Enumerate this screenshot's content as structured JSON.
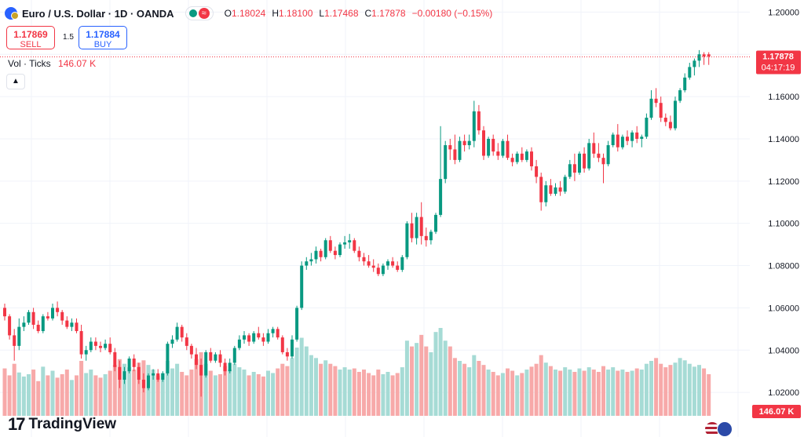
{
  "header": {
    "title": "Euro / U.S. Dollar · 1D · OANDA",
    "ohlc": [
      {
        "k": "O",
        "v": "1.18024"
      },
      {
        "k": "H",
        "v": "1.18100"
      },
      {
        "k": "L",
        "v": "1.17468"
      },
      {
        "k": "C",
        "v": "1.17878"
      }
    ],
    "change": "−0.00180 (−0.15%)",
    "wave_icon": "≈"
  },
  "trade": {
    "sell_price": "1.17869",
    "sell_label": "SELL",
    "buy_price": "1.17884",
    "buy_label": "BUY",
    "spread": "1.5"
  },
  "volume": {
    "label": "Vol · Ticks",
    "value": "146.07 K"
  },
  "collapse_icon": "▲",
  "price_axis": {
    "ticks": [
      "1.20000",
      "1.18000",
      "1.16000",
      "1.14000",
      "1.12000",
      "1.10000",
      "1.08000",
      "1.06000",
      "1.04000",
      "1.02000"
    ],
    "last_price": "1.17878",
    "countdown": "04:17:19",
    "volume_label": "146.07 K"
  },
  "brand": {
    "mark": "17",
    "name": "TradingView"
  },
  "colors": {
    "up": "#089981",
    "down": "#f23645",
    "up_vol": "#a6dbd5",
    "down_vol": "#f7a9a9",
    "grid": "#f0f3fa"
  },
  "chart_data": {
    "type": "candlestick",
    "ylim": [
      1.0167,
      1.202
    ],
    "volume_max": 152,
    "candles": [
      [
        1.06,
        1.062,
        1.054,
        1.056,
        82
      ],
      [
        1.056,
        1.057,
        1.045,
        1.047,
        70
      ],
      [
        1.047,
        1.05,
        1.035,
        1.042,
        90
      ],
      [
        1.042,
        1.055,
        1.04,
        1.051,
        75
      ],
      [
        1.051,
        1.056,
        1.049,
        1.053,
        68
      ],
      [
        1.053,
        1.059,
        1.052,
        1.058,
        72
      ],
      [
        1.058,
        1.06,
        1.05,
        1.052,
        80
      ],
      [
        1.052,
        1.054,
        1.048,
        1.049,
        60
      ],
      [
        1.049,
        1.057,
        1.048,
        1.056,
        85
      ],
      [
        1.056,
        1.058,
        1.054,
        1.055,
        70
      ],
      [
        1.055,
        1.062,
        1.054,
        1.06,
        78
      ],
      [
        1.06,
        1.063,
        1.056,
        1.058,
        66
      ],
      [
        1.058,
        1.059,
        1.052,
        1.054,
        72
      ],
      [
        1.054,
        1.056,
        1.05,
        1.051,
        80
      ],
      [
        1.051,
        1.055,
        1.049,
        1.053,
        62
      ],
      [
        1.053,
        1.055,
        1.048,
        1.049,
        70
      ],
      [
        1.049,
        1.052,
        1.036,
        1.038,
        95
      ],
      [
        1.038,
        1.042,
        1.035,
        1.04,
        74
      ],
      [
        1.04,
        1.046,
        1.039,
        1.044,
        80
      ],
      [
        1.044,
        1.046,
        1.04,
        1.042,
        70
      ],
      [
        1.042,
        1.044,
        1.039,
        1.041,
        66
      ],
      [
        1.041,
        1.045,
        1.04,
        1.043,
        72
      ],
      [
        1.043,
        1.046,
        1.038,
        1.039,
        78
      ],
      [
        1.039,
        1.041,
        1.03,
        1.032,
        88
      ],
      [
        1.032,
        1.035,
        1.022,
        1.026,
        98
      ],
      [
        1.026,
        1.032,
        1.024,
        1.03,
        90
      ],
      [
        1.03,
        1.037,
        1.029,
        1.036,
        84
      ],
      [
        1.036,
        1.038,
        1.03,
        1.032,
        80
      ],
      [
        1.032,
        1.034,
        1.024,
        1.026,
        92
      ],
      [
        1.026,
        1.029,
        1.02,
        1.022,
        96
      ],
      [
        1.022,
        1.029,
        1.021,
        1.028,
        88
      ],
      [
        1.028,
        1.031,
        1.026,
        1.029,
        80
      ],
      [
        1.029,
        1.031,
        1.025,
        1.026,
        70
      ],
      [
        1.026,
        1.03,
        1.025,
        1.029,
        74
      ],
      [
        1.029,
        1.044,
        1.028,
        1.043,
        95
      ],
      [
        1.043,
        1.047,
        1.041,
        1.045,
        82
      ],
      [
        1.045,
        1.053,
        1.044,
        1.051,
        90
      ],
      [
        1.051,
        1.052,
        1.044,
        1.046,
        76
      ],
      [
        1.046,
        1.048,
        1.04,
        1.042,
        70
      ],
      [
        1.042,
        1.043,
        1.036,
        1.038,
        80
      ],
      [
        1.038,
        1.041,
        1.031,
        1.033,
        98
      ],
      [
        1.033,
        1.036,
        1.018,
        1.028,
        110
      ],
      [
        1.028,
        1.04,
        1.027,
        1.039,
        90
      ],
      [
        1.039,
        1.041,
        1.034,
        1.035,
        78
      ],
      [
        1.035,
        1.039,
        1.034,
        1.038,
        70
      ],
      [
        1.038,
        1.04,
        1.032,
        1.034,
        72
      ],
      [
        1.034,
        1.036,
        1.028,
        1.03,
        86
      ],
      [
        1.03,
        1.036,
        1.029,
        1.034,
        80
      ],
      [
        1.034,
        1.042,
        1.033,
        1.041,
        90
      ],
      [
        1.041,
        1.047,
        1.04,
        1.045,
        84
      ],
      [
        1.045,
        1.049,
        1.043,
        1.047,
        80
      ],
      [
        1.047,
        1.048,
        1.042,
        1.044,
        70
      ],
      [
        1.044,
        1.049,
        1.043,
        1.048,
        76
      ],
      [
        1.048,
        1.051,
        1.045,
        1.046,
        72
      ],
      [
        1.046,
        1.048,
        1.042,
        1.044,
        68
      ],
      [
        1.044,
        1.05,
        1.043,
        1.048,
        78
      ],
      [
        1.048,
        1.051,
        1.046,
        1.05,
        74
      ],
      [
        1.05,
        1.051,
        1.045,
        1.046,
        82
      ],
      [
        1.046,
        1.047,
        1.038,
        1.039,
        90
      ],
      [
        1.039,
        1.041,
        1.035,
        1.037,
        86
      ],
      [
        1.037,
        1.047,
        1.036,
        1.045,
        100
      ],
      [
        1.045,
        1.061,
        1.044,
        1.06,
        118
      ],
      [
        1.06,
        1.082,
        1.059,
        1.08,
        135
      ],
      [
        1.08,
        1.084,
        1.078,
        1.082,
        120
      ],
      [
        1.082,
        1.086,
        1.08,
        1.083,
        105
      ],
      [
        1.083,
        1.089,
        1.081,
        1.087,
        100
      ],
      [
        1.087,
        1.088,
        1.082,
        1.084,
        90
      ],
      [
        1.084,
        1.093,
        1.083,
        1.092,
        96
      ],
      [
        1.092,
        1.094,
        1.086,
        1.087,
        90
      ],
      [
        1.087,
        1.089,
        1.083,
        1.085,
        86
      ],
      [
        1.085,
        1.091,
        1.084,
        1.09,
        80
      ],
      [
        1.09,
        1.094,
        1.088,
        1.091,
        84
      ],
      [
        1.091,
        1.095,
        1.088,
        1.092,
        80
      ],
      [
        1.092,
        1.093,
        1.086,
        1.087,
        82
      ],
      [
        1.087,
        1.089,
        1.082,
        1.084,
        76
      ],
      [
        1.084,
        1.086,
        1.08,
        1.082,
        80
      ],
      [
        1.082,
        1.085,
        1.079,
        1.08,
        74
      ],
      [
        1.08,
        1.083,
        1.077,
        1.079,
        70
      ],
      [
        1.079,
        1.081,
        1.075,
        1.076,
        80
      ],
      [
        1.076,
        1.081,
        1.075,
        1.08,
        72
      ],
      [
        1.08,
        1.083,
        1.078,
        1.082,
        76
      ],
      [
        1.082,
        1.084,
        1.079,
        1.08,
        70
      ],
      [
        1.08,
        1.082,
        1.077,
        1.078,
        74
      ],
      [
        1.078,
        1.085,
        1.077,
        1.084,
        84
      ],
      [
        1.084,
        1.101,
        1.083,
        1.1,
        130
      ],
      [
        1.1,
        1.105,
        1.091,
        1.093,
        120
      ],
      [
        1.093,
        1.105,
        1.09,
        1.103,
        126
      ],
      [
        1.103,
        1.11,
        1.09,
        1.094,
        140
      ],
      [
        1.094,
        1.098,
        1.089,
        1.092,
        120
      ],
      [
        1.092,
        1.097,
        1.09,
        1.096,
        110
      ],
      [
        1.096,
        1.105,
        1.095,
        1.104,
        145
      ],
      [
        1.104,
        1.146,
        1.103,
        1.121,
        152
      ],
      [
        1.121,
        1.139,
        1.119,
        1.137,
        130
      ],
      [
        1.137,
        1.14,
        1.13,
        1.135,
        120
      ],
      [
        1.135,
        1.142,
        1.128,
        1.13,
        100
      ],
      [
        1.13,
        1.141,
        1.129,
        1.139,
        95
      ],
      [
        1.139,
        1.142,
        1.134,
        1.137,
        90
      ],
      [
        1.137,
        1.142,
        1.135,
        1.139,
        84
      ],
      [
        1.139,
        1.158,
        1.136,
        1.153,
        105
      ],
      [
        1.153,
        1.156,
        1.142,
        1.144,
        95
      ],
      [
        1.144,
        1.146,
        1.13,
        1.132,
        88
      ],
      [
        1.132,
        1.141,
        1.131,
        1.14,
        80
      ],
      [
        1.14,
        1.142,
        1.132,
        1.134,
        76
      ],
      [
        1.134,
        1.138,
        1.13,
        1.132,
        70
      ],
      [
        1.132,
        1.14,
        1.131,
        1.139,
        74
      ],
      [
        1.139,
        1.142,
        1.13,
        1.131,
        82
      ],
      [
        1.131,
        1.133,
        1.127,
        1.129,
        78
      ],
      [
        1.129,
        1.134,
        1.128,
        1.133,
        70
      ],
      [
        1.133,
        1.136,
        1.129,
        1.13,
        74
      ],
      [
        1.13,
        1.135,
        1.129,
        1.134,
        80
      ],
      [
        1.134,
        1.136,
        1.125,
        1.127,
        85
      ],
      [
        1.127,
        1.13,
        1.119,
        1.122,
        90
      ],
      [
        1.122,
        1.124,
        1.106,
        1.11,
        105
      ],
      [
        1.11,
        1.12,
        1.108,
        1.118,
        92
      ],
      [
        1.118,
        1.121,
        1.113,
        1.114,
        86
      ],
      [
        1.114,
        1.119,
        1.113,
        1.117,
        80
      ],
      [
        1.117,
        1.12,
        1.113,
        1.115,
        78
      ],
      [
        1.115,
        1.123,
        1.114,
        1.122,
        84
      ],
      [
        1.122,
        1.13,
        1.121,
        1.128,
        80
      ],
      [
        1.128,
        1.133,
        1.12,
        1.124,
        76
      ],
      [
        1.124,
        1.134,
        1.123,
        1.133,
        82
      ],
      [
        1.133,
        1.136,
        1.124,
        1.126,
        78
      ],
      [
        1.126,
        1.14,
        1.125,
        1.138,
        84
      ],
      [
        1.138,
        1.143,
        1.131,
        1.133,
        80
      ],
      [
        1.133,
        1.138,
        1.129,
        1.131,
        76
      ],
      [
        1.131,
        1.133,
        1.119,
        1.128,
        86
      ],
      [
        1.128,
        1.139,
        1.127,
        1.137,
        80
      ],
      [
        1.137,
        1.143,
        1.136,
        1.142,
        84
      ],
      [
        1.142,
        1.147,
        1.134,
        1.136,
        78
      ],
      [
        1.136,
        1.142,
        1.135,
        1.141,
        80
      ],
      [
        1.141,
        1.144,
        1.137,
        1.139,
        76
      ],
      [
        1.139,
        1.144,
        1.136,
        1.143,
        78
      ],
      [
        1.143,
        1.146,
        1.138,
        1.14,
        82
      ],
      [
        1.14,
        1.142,
        1.136,
        1.141,
        80
      ],
      [
        1.141,
        1.152,
        1.14,
        1.15,
        90
      ],
      [
        1.15,
        1.163,
        1.149,
        1.159,
        95
      ],
      [
        1.159,
        1.164,
        1.155,
        1.157,
        100
      ],
      [
        1.157,
        1.16,
        1.148,
        1.15,
        90
      ],
      [
        1.15,
        1.152,
        1.146,
        1.148,
        84
      ],
      [
        1.148,
        1.151,
        1.144,
        1.145,
        88
      ],
      [
        1.145,
        1.16,
        1.144,
        1.158,
        92
      ],
      [
        1.158,
        1.164,
        1.157,
        1.163,
        100
      ],
      [
        1.163,
        1.171,
        1.162,
        1.169,
        96
      ],
      [
        1.169,
        1.176,
        1.168,
        1.174,
        90
      ],
      [
        1.174,
        1.178,
        1.17,
        1.177,
        85
      ],
      [
        1.177,
        1.182,
        1.174,
        1.18,
        88
      ],
      [
        1.18,
        1.181,
        1.175,
        1.179,
        82
      ],
      [
        1.18,
        1.181,
        1.175,
        1.179,
        72
      ]
    ]
  }
}
